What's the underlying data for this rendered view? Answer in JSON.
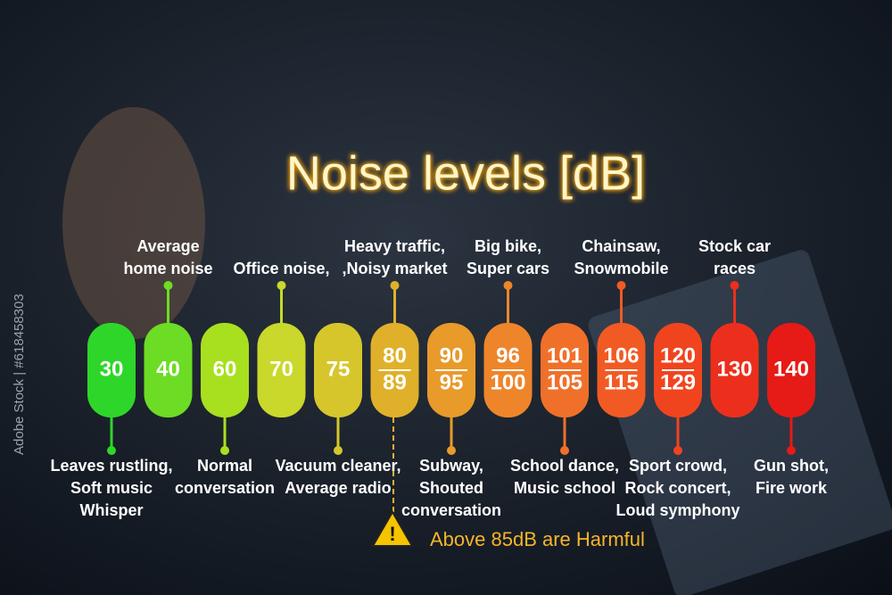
{
  "title": "Noise levels [dB]",
  "side_text": "Adobe Stock | #618458303",
  "warning": "Above 85dB are Harmful",
  "levels": [
    {
      "label": [
        "30"
      ],
      "note": [
        "Leaves rustling,",
        "Soft music",
        "Whisper"
      ],
      "color": "#2fd62a"
    },
    {
      "label": [
        "40"
      ],
      "note": [
        "Average",
        "home noise"
      ],
      "color": "#6ddc25"
    },
    {
      "label": [
        "60"
      ],
      "note": [
        "Normal",
        "conversation"
      ],
      "color": "#a8e01f"
    },
    {
      "label": [
        "70"
      ],
      "note": [
        "Office noise,"
      ],
      "color": "#c9d82a"
    },
    {
      "label": [
        "75"
      ],
      "note": [
        "Vacuum cleaner,",
        "Average radio"
      ],
      "color": "#d6c62c"
    },
    {
      "label": [
        "80",
        "89"
      ],
      "note": [
        "Heavy traffic,",
        ",Noisy market"
      ],
      "color": "#e0b02a"
    },
    {
      "label": [
        "90",
        "95"
      ],
      "note": [
        "Subway,",
        "Shouted",
        "conversation"
      ],
      "color": "#e89a2a"
    },
    {
      "label": [
        "96",
        "100"
      ],
      "note": [
        "Big bike,",
        "Super cars"
      ],
      "color": "#ee852b"
    },
    {
      "label": [
        "101",
        "105"
      ],
      "note": [
        "School dance,",
        "Music school"
      ],
      "color": "#f0702a"
    },
    {
      "label": [
        "106",
        "115"
      ],
      "note": [
        "Chainsaw,",
        "Snowmobile"
      ],
      "color": "#f25a24"
    },
    {
      "label": [
        "120",
        "129"
      ],
      "note": [
        "Sport crowd,",
        "Rock concert,",
        "Loud symphony"
      ],
      "color": "#f0441f"
    },
    {
      "label": [
        "130"
      ],
      "note": [
        "Stock car",
        "races"
      ],
      "color": "#ec2f1c"
    },
    {
      "label": [
        "140"
      ],
      "note": [
        "Gun shot,",
        "Fire work"
      ],
      "color": "#e61a16"
    }
  ]
}
